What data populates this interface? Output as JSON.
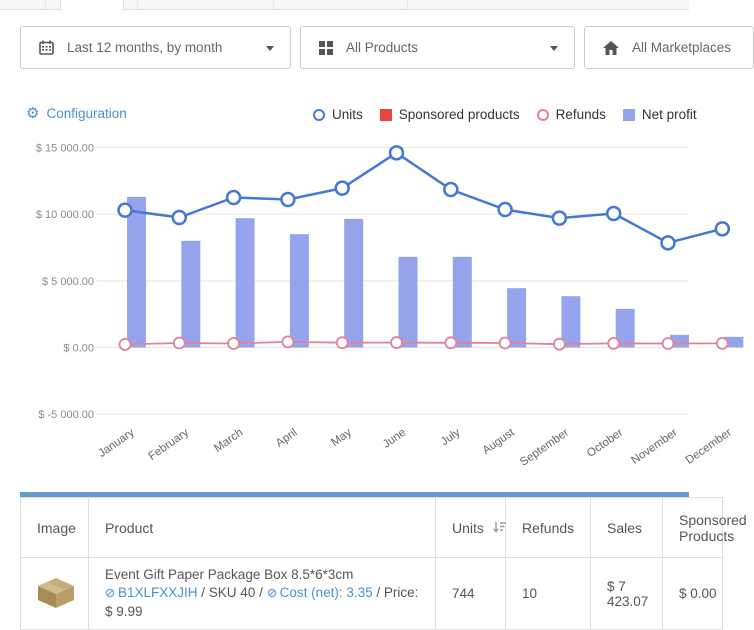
{
  "filters": {
    "date_range": {
      "label": "Last 12 months, by month"
    },
    "products": {
      "label": "All Products"
    },
    "marketplaces": {
      "label": "All Marketplaces"
    }
  },
  "chart_header": {
    "configuration_label": "Configuration",
    "legend": [
      {
        "label": "Units",
        "marker": "circle",
        "color": "#4577d4"
      },
      {
        "label": "Sponsored products",
        "marker": "square",
        "color": "#e8463c"
      },
      {
        "label": "Refunds",
        "marker": "circle",
        "color": "#e08399"
      },
      {
        "label": "Net profit",
        "marker": "square",
        "color": "#96a3ed"
      }
    ]
  },
  "chart_data": {
    "type": "line+bar combo",
    "categories": [
      "January",
      "February",
      "March",
      "April",
      "May",
      "June",
      "July",
      "August",
      "September",
      "October",
      "November",
      "December"
    ],
    "y_ticks": [
      15000,
      10000,
      5000,
      0,
      -5000
    ],
    "y_tick_labels": [
      "$ 15 000.00",
      "$ 10 000.00",
      "$ 5 000.00",
      "$ 0.00",
      "$ -5 000.00"
    ],
    "ylim": [
      -5000,
      15000
    ],
    "grid": true,
    "legend_position": "top",
    "series": [
      {
        "name": "Units",
        "type": "line",
        "color": "#4577d4",
        "values": [
          10300,
          9750,
          11250,
          11100,
          11950,
          14600,
          11850,
          10350,
          9700,
          10050,
          7850,
          8900
        ]
      },
      {
        "name": "Sponsored products",
        "type": "line",
        "color": "#e8463c",
        "plotted": false,
        "values": []
      },
      {
        "name": "Refunds",
        "type": "line",
        "color": "#e08399",
        "values": [
          230,
          340,
          300,
          420,
          360,
          370,
          350,
          340,
          250,
          310,
          300,
          310
        ]
      },
      {
        "name": "Net profit",
        "type": "bar",
        "color": "#96a3ed",
        "values": [
          11300,
          8000,
          9700,
          8500,
          9650,
          6800,
          6800,
          4450,
          3850,
          2900,
          950,
          800
        ]
      }
    ]
  },
  "table": {
    "headers": {
      "image": "Image",
      "product": "Product",
      "units": "Units",
      "refunds": "Refunds",
      "sales": "Sales",
      "sponsored": "Sponsored Products"
    },
    "row": {
      "product_title": "Event Gift Paper Package Box 8.5*6*3cm",
      "asin": "B1XLFXXJIH",
      "sku_seg": "/ SKU 40 /",
      "cost_link": "Cost (net): 3.35",
      "price_seg": "/ Price:",
      "price_value": "$ 9.99",
      "units": "744",
      "refunds": "10",
      "sales": "$ 7 423.07",
      "sponsored": "$ 0.00"
    }
  }
}
